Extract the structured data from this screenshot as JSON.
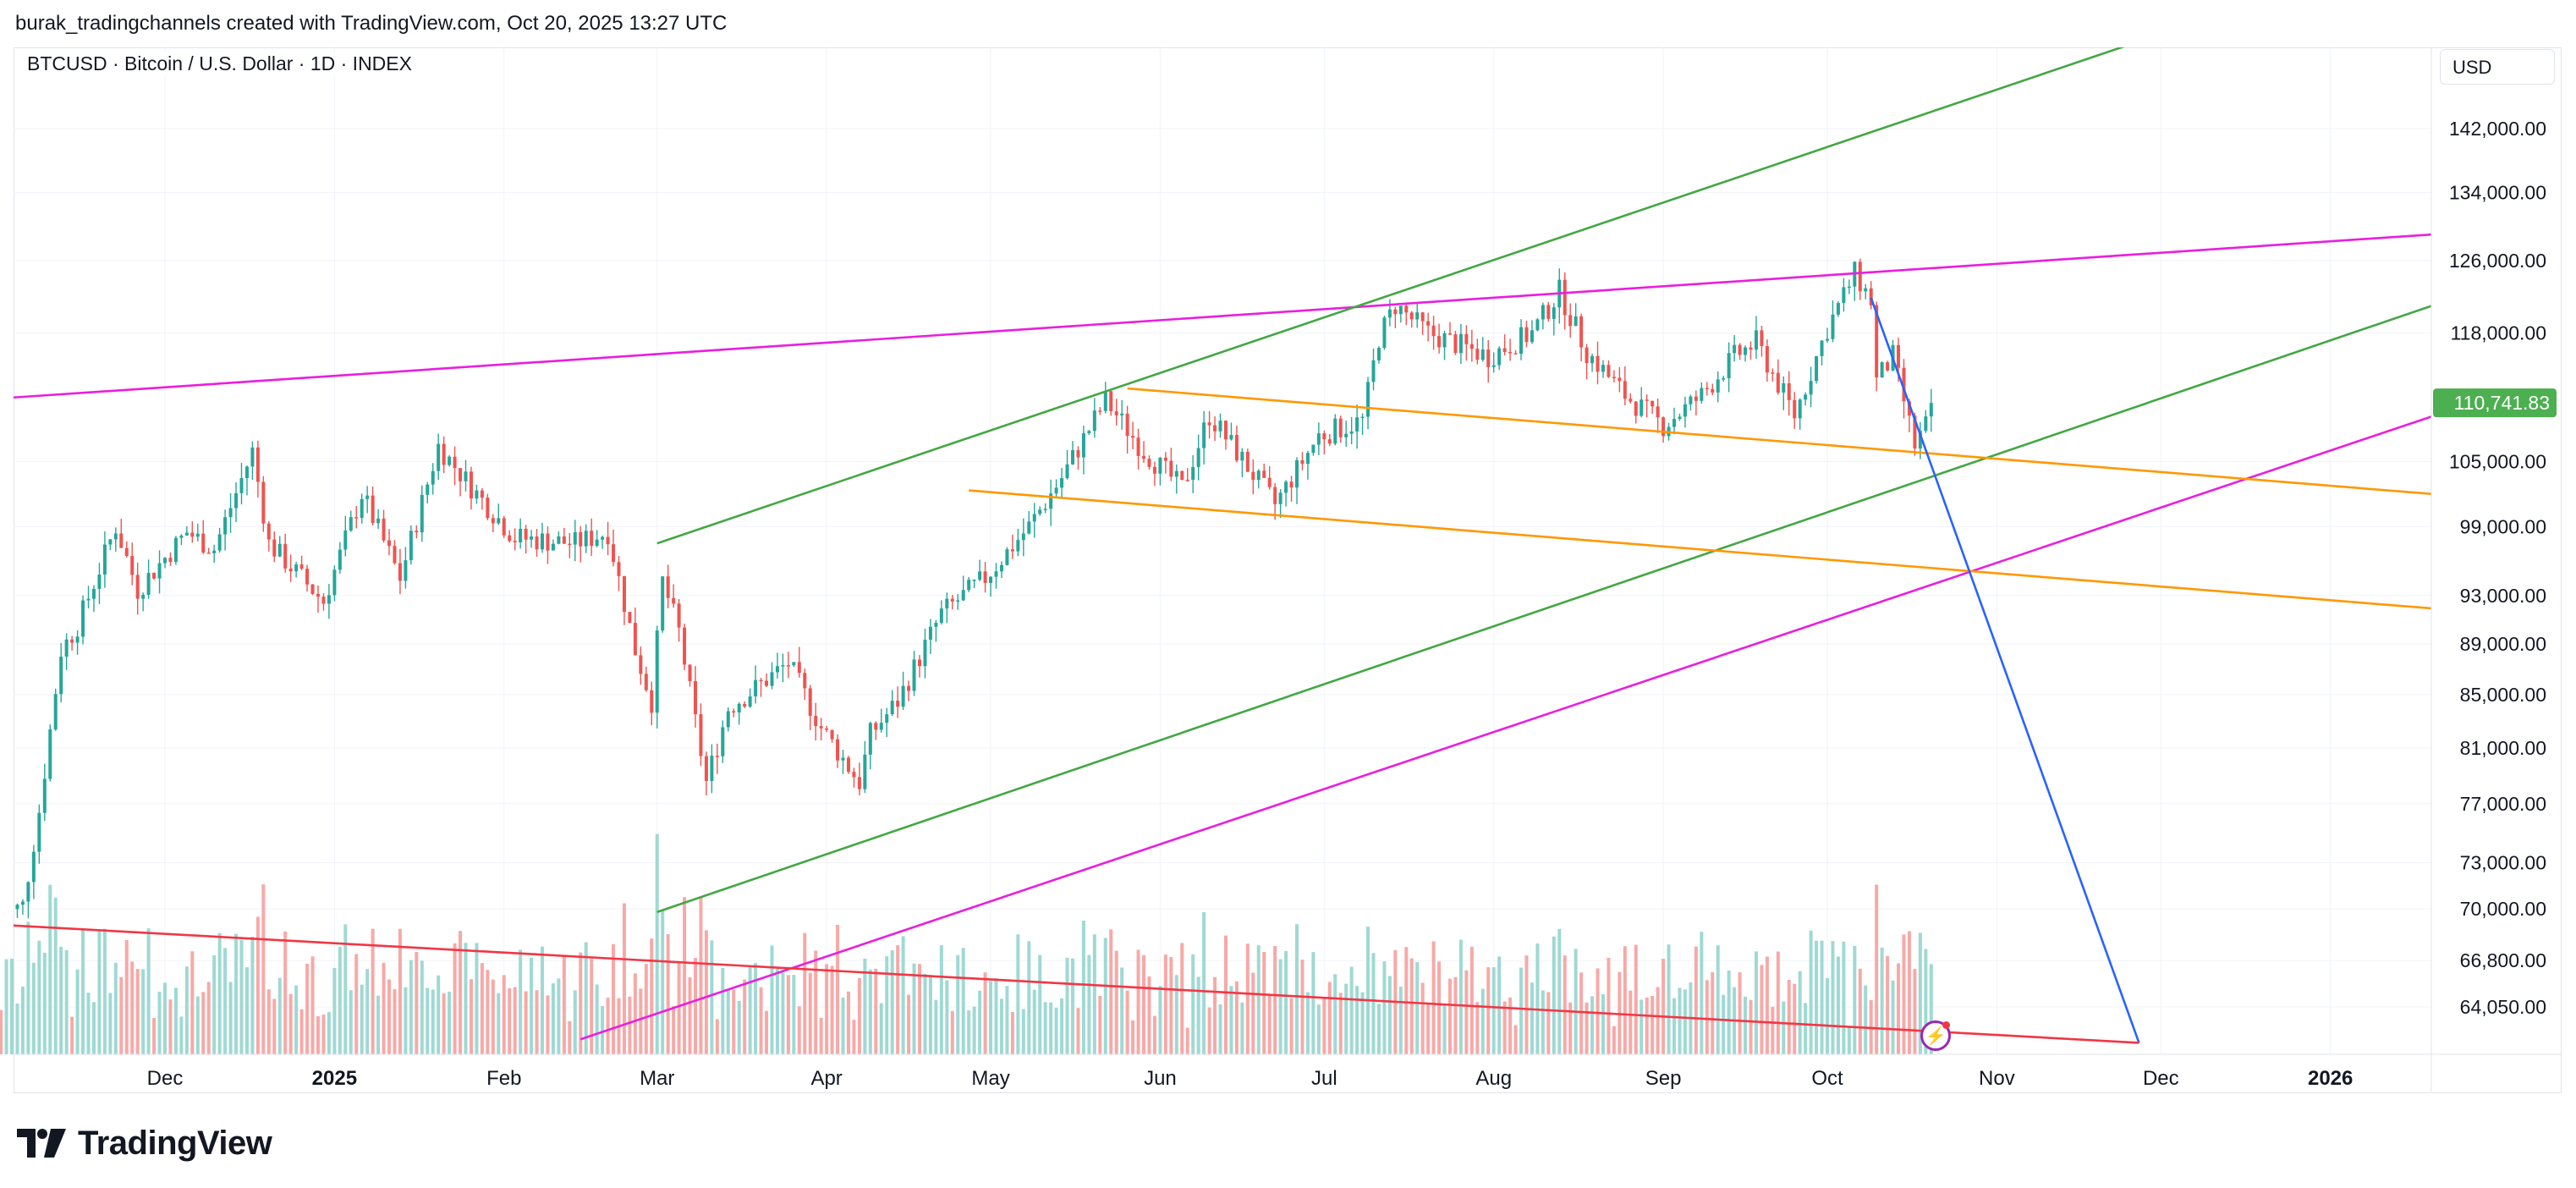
{
  "header": {
    "caption": "burak_tradingchannels created with TradingView.com, Oct 20, 2025 13:27 UTC",
    "symbol_line": "BTCUSD · Bitcoin / U.S. Dollar · 1D · INDEX",
    "currency": "USD"
  },
  "footer": {
    "brand": "TradingView"
  },
  "colors": {
    "up": "#26a69a",
    "down": "#ef5350",
    "vol_up": "#9fd9d3",
    "vol_down": "#f7a9a7",
    "magenta": "#e91ee0",
    "green": "#43a743",
    "orange": "#ff9800",
    "blue": "#2962ff",
    "red": "#f23645",
    "last_price_bg": "#4caf50",
    "grid": "#f0f3fa"
  },
  "chart_data": {
    "type": "candlestick",
    "symbol": "BTCUSD",
    "interval": "1D",
    "scale": "log",
    "y_ticks": [
      142000,
      134000,
      126000,
      118000,
      105000,
      99000,
      93000,
      89000,
      85000,
      81000,
      77000,
      73000,
      70000,
      66800,
      64050
    ],
    "y_tick_labels": [
      "142,000.00",
      "134,000.00",
      "126,000.00",
      "118,000.00",
      "105,000.00",
      "99,000.00",
      "93,000.00",
      "89,000.00",
      "85,000.00",
      "81,000.00",
      "77,000.00",
      "73,000.00",
      "70,000.00",
      "66,800.00",
      "64,050.00"
    ],
    "x_ticks": [
      {
        "date": "2024-12-01",
        "label": "Dec"
      },
      {
        "date": "2025-01-01",
        "label": "2025",
        "bold": true
      },
      {
        "date": "2025-02-01",
        "label": "Feb"
      },
      {
        "date": "2025-03-01",
        "label": "Mar"
      },
      {
        "date": "2025-04-01",
        "label": "Apr"
      },
      {
        "date": "2025-05-01",
        "label": "May"
      },
      {
        "date": "2025-06-01",
        "label": "Jun"
      },
      {
        "date": "2025-07-01",
        "label": "Jul"
      },
      {
        "date": "2025-08-01",
        "label": "Aug"
      },
      {
        "date": "2025-09-01",
        "label": "Sep"
      },
      {
        "date": "2025-10-01",
        "label": "Oct"
      },
      {
        "date": "2025-11-01",
        "label": "Nov"
      },
      {
        "date": "2025-12-01",
        "label": "Dec"
      },
      {
        "date": "2026-01-01",
        "label": "2026",
        "bold": true
      }
    ],
    "last_price": 110741.83,
    "last_price_label": "110,741.83",
    "price_path": [
      [
        "2024-11-01",
        69500
      ],
      [
        "2024-11-05",
        70200
      ],
      [
        "2024-11-08",
        76500
      ],
      [
        "2024-11-12",
        88500
      ],
      [
        "2024-11-15",
        90500
      ],
      [
        "2024-11-22",
        99000
      ],
      [
        "2024-11-26",
        93500
      ],
      [
        "2024-12-05",
        98500
      ],
      [
        "2024-12-10",
        97000
      ],
      [
        "2024-12-17",
        106000
      ],
      [
        "2024-12-20",
        97500
      ],
      [
        "2024-12-30",
        92500
      ],
      [
        "2025-01-06",
        102000
      ],
      [
        "2025-01-13",
        94500
      ],
      [
        "2025-01-20",
        106500
      ],
      [
        "2025-01-27",
        102000
      ],
      [
        "2025-02-03",
        98000
      ],
      [
        "2025-02-14",
        97500
      ],
      [
        "2025-02-20",
        98500
      ],
      [
        "2025-02-25",
        88500
      ],
      [
        "2025-02-28",
        84500
      ],
      [
        "2025-03-02",
        94200
      ],
      [
        "2025-03-05",
        90000
      ],
      [
        "2025-03-10",
        78500
      ],
      [
        "2025-03-14",
        84000
      ],
      [
        "2025-03-19",
        85500
      ],
      [
        "2025-03-25",
        87500
      ],
      [
        "2025-03-31",
        82500
      ],
      [
        "2025-04-07",
        78500
      ],
      [
        "2025-04-09",
        82000
      ],
      [
        "2025-04-14",
        84500
      ],
      [
        "2025-04-22",
        91500
      ],
      [
        "2025-04-30",
        94500
      ],
      [
        "2025-05-08",
        99000
      ],
      [
        "2025-05-14",
        103500
      ],
      [
        "2025-05-22",
        111000
      ],
      [
        "2025-05-29",
        106000
      ],
      [
        "2025-06-05",
        102500
      ],
      [
        "2025-06-10",
        109500
      ],
      [
        "2025-06-17",
        104500
      ],
      [
        "2025-06-22",
        101000
      ],
      [
        "2025-06-30",
        107500
      ],
      [
        "2025-07-08",
        109000
      ],
      [
        "2025-07-11",
        117500
      ],
      [
        "2025-07-14",
        121000
      ],
      [
        "2025-07-20",
        118000
      ],
      [
        "2025-07-31",
        115500
      ],
      [
        "2025-08-08",
        118000
      ],
      [
        "2025-08-13",
        122500
      ],
      [
        "2025-08-18",
        116000
      ],
      [
        "2025-08-25",
        111500
      ],
      [
        "2025-09-01",
        108500
      ],
      [
        "2025-09-08",
        111500
      ],
      [
        "2025-09-14",
        115500
      ],
      [
        "2025-09-18",
        117000
      ],
      [
        "2025-09-25",
        109500
      ],
      [
        "2025-10-01",
        118500
      ],
      [
        "2025-10-06",
        124500
      ],
      [
        "2025-10-09",
        121500
      ],
      [
        "2025-10-10",
        113000
      ],
      [
        "2025-10-13",
        115500
      ],
      [
        "2025-10-17",
        106500
      ],
      [
        "2025-10-19",
        108500
      ],
      [
        "2025-10-20",
        110741.83
      ]
    ],
    "drawings": [
      {
        "kind": "line",
        "color": "magenta",
        "label": "upper-magenta-resistance",
        "p1": [
          "2024-11-01",
          111200
        ],
        "p2": [
          "2026-01-31",
          129500
        ]
      },
      {
        "kind": "line",
        "color": "magenta",
        "label": "lower-magenta-support",
        "p1": [
          "2025-02-15",
          62200
        ],
        "p2": [
          "2026-01-31",
          111500
        ]
      },
      {
        "kind": "line",
        "color": "green",
        "label": "green-channel-top",
        "p1": [
          "2025-03-01",
          97500
        ],
        "p2": [
          "2025-12-21",
          160000
        ]
      },
      {
        "kind": "line",
        "color": "green",
        "label": "green-channel-bottom",
        "p1": [
          "2025-03-01",
          69800
        ],
        "p2": [
          "2026-01-31",
          123300
        ]
      },
      {
        "kind": "line",
        "color": "orange",
        "label": "orange-channel-top",
        "p1": [
          "2025-05-26",
          112200
        ],
        "p2": [
          "2026-01-31",
          101500
        ]
      },
      {
        "kind": "line",
        "color": "orange",
        "label": "orange-channel-bottom",
        "p1": [
          "2025-04-27",
          102300
        ],
        "p2": [
          "2026-01-31",
          91500
        ]
      },
      {
        "kind": "line",
        "color": "blue",
        "label": "projection-line",
        "p1": [
          "2025-10-09",
          121800
        ],
        "p2": [
          "2025-11-27",
          62000
        ]
      },
      {
        "kind": "line",
        "color": "red",
        "label": "volume-trendline",
        "p1": [
          "2024-11-01",
          69000
        ],
        "p2": [
          "2025-11-27",
          62000
        ]
      }
    ]
  }
}
